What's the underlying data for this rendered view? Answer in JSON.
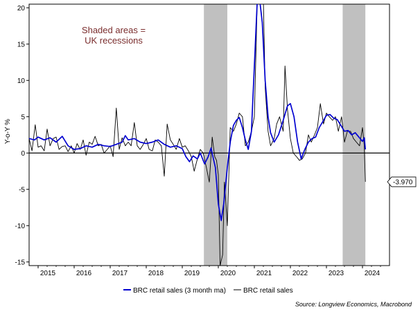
{
  "chart_data": {
    "type": "line",
    "ylabel": "Y-o-Y %",
    "ylim": [
      -15.5,
      20.5
    ],
    "yticks": [
      -15,
      -10,
      -5,
      0,
      5,
      10,
      15,
      20
    ],
    "xlim": [
      2014.75,
      2024.75
    ],
    "xticks": [
      {
        "label": "2015",
        "x": 2015.0
      },
      {
        "label": "2016",
        "x": 2016.0
      },
      {
        "label": "2017",
        "x": 2017.0
      },
      {
        "label": "2018",
        "x": 2018.0
      },
      {
        "label": "2019",
        "x": 2019.0
      },
      {
        "label": "2020",
        "x": 2020.0
      },
      {
        "label": "2021",
        "x": 2021.0
      },
      {
        "label": "2022",
        "x": 2022.0
      },
      {
        "label": "2023",
        "x": 2023.0
      },
      {
        "label": "2024",
        "x": 2024.0
      }
    ],
    "recessions": [
      {
        "start": 2019.6,
        "end": 2020.25
      },
      {
        "start": 2023.45,
        "end": 2024.08
      }
    ],
    "annotation": [
      "Shaded areas =",
      "UK recessions"
    ],
    "callout": {
      "label": "-3.970",
      "x": 2024.08,
      "y": -3.97
    },
    "series": [
      {
        "name": "BRC retail sales (3 month ma)",
        "color": "#0000d0",
        "points": [
          [
            2014.75,
            2.0
          ],
          [
            2014.9,
            1.8
          ],
          [
            2015.0,
            2.2
          ],
          [
            2015.17,
            1.8
          ],
          [
            2015.33,
            2.1
          ],
          [
            2015.5,
            1.5
          ],
          [
            2015.67,
            2.3
          ],
          [
            2015.83,
            1.0
          ],
          [
            2016.0,
            0.5
          ],
          [
            2016.17,
            0.6
          ],
          [
            2016.33,
            1.0
          ],
          [
            2016.5,
            0.8
          ],
          [
            2016.67,
            1.2
          ],
          [
            2016.83,
            1.0
          ],
          [
            2017.0,
            0.9
          ],
          [
            2017.17,
            1.2
          ],
          [
            2017.33,
            1.5
          ],
          [
            2017.42,
            2.4
          ],
          [
            2017.5,
            1.8
          ],
          [
            2017.67,
            2.0
          ],
          [
            2017.83,
            1.5
          ],
          [
            2018.0,
            1.3
          ],
          [
            2018.17,
            1.5
          ],
          [
            2018.33,
            1.8
          ],
          [
            2018.5,
            1.2
          ],
          [
            2018.67,
            0.8
          ],
          [
            2018.83,
            1.0
          ],
          [
            2019.0,
            0.6
          ],
          [
            2019.1,
            -0.5
          ],
          [
            2019.2,
            -1.2
          ],
          [
            2019.3,
            -0.4
          ],
          [
            2019.42,
            -0.8
          ],
          [
            2019.5,
            0.0
          ],
          [
            2019.62,
            -1.5
          ],
          [
            2019.72,
            -0.5
          ],
          [
            2019.8,
            0.7
          ],
          [
            2019.85,
            -0.5
          ],
          [
            2019.92,
            -2.0
          ],
          [
            2020.0,
            -7.0
          ],
          [
            2020.08,
            -9.3
          ],
          [
            2020.15,
            -7.0
          ],
          [
            2020.25,
            -2.0
          ],
          [
            2020.33,
            1.5
          ],
          [
            2020.42,
            3.8
          ],
          [
            2020.5,
            4.5
          ],
          [
            2020.58,
            4.9
          ],
          [
            2020.67,
            3.5
          ],
          [
            2020.75,
            1.8
          ],
          [
            2020.83,
            0.5
          ],
          [
            2020.92,
            3.0
          ],
          [
            2021.0,
            12.0
          ],
          [
            2021.08,
            21.0
          ],
          [
            2021.15,
            21.0
          ],
          [
            2021.22,
            18.0
          ],
          [
            2021.3,
            10.0
          ],
          [
            2021.38,
            5.0
          ],
          [
            2021.45,
            2.8
          ],
          [
            2021.55,
            1.5
          ],
          [
            2021.67,
            2.5
          ],
          [
            2021.8,
            4.5
          ],
          [
            2021.92,
            6.5
          ],
          [
            2022.0,
            6.8
          ],
          [
            2022.1,
            5.0
          ],
          [
            2022.2,
            1.5
          ],
          [
            2022.3,
            -0.8
          ],
          [
            2022.4,
            0.5
          ],
          [
            2022.5,
            1.5
          ],
          [
            2022.6,
            2.0
          ],
          [
            2022.7,
            2.2
          ],
          [
            2022.8,
            3.5
          ],
          [
            2022.92,
            4.5
          ],
          [
            2023.0,
            5.2
          ],
          [
            2023.1,
            5.3
          ],
          [
            2023.2,
            4.8
          ],
          [
            2023.3,
            4.6
          ],
          [
            2023.4,
            3.8
          ],
          [
            2023.5,
            3.0
          ],
          [
            2023.6,
            3.1
          ],
          [
            2023.7,
            2.5
          ],
          [
            2023.8,
            2.8
          ],
          [
            2023.9,
            2.2
          ],
          [
            2024.0,
            1.6
          ],
          [
            2024.05,
            2.1
          ],
          [
            2024.08,
            0.5
          ]
        ]
      },
      {
        "name": "BRC retail sales",
        "color": "#000000",
        "points": [
          [
            2014.75,
            2.0
          ],
          [
            2014.83,
            0.3
          ],
          [
            2014.92,
            3.9
          ],
          [
            2015.0,
            0.8
          ],
          [
            2015.08,
            1.0
          ],
          [
            2015.17,
            0.3
          ],
          [
            2015.25,
            3.3
          ],
          [
            2015.33,
            1.0
          ],
          [
            2015.42,
            2.0
          ],
          [
            2015.5,
            2.2
          ],
          [
            2015.58,
            0.5
          ],
          [
            2015.67,
            0.9
          ],
          [
            2015.75,
            1.0
          ],
          [
            2015.83,
            0.2
          ],
          [
            2015.92,
            1.0
          ],
          [
            2016.0,
            0.0
          ],
          [
            2016.08,
            1.3
          ],
          [
            2016.17,
            0.5
          ],
          [
            2016.25,
            1.8
          ],
          [
            2016.33,
            -0.3
          ],
          [
            2016.42,
            1.5
          ],
          [
            2016.5,
            1.2
          ],
          [
            2016.58,
            2.3
          ],
          [
            2016.67,
            1.0
          ],
          [
            2016.75,
            1.2
          ],
          [
            2016.83,
            0.0
          ],
          [
            2016.92,
            0.5
          ],
          [
            2017.0,
            1.0
          ],
          [
            2017.08,
            -0.5
          ],
          [
            2017.17,
            6.2
          ],
          [
            2017.25,
            0.5
          ],
          [
            2017.33,
            2.1
          ],
          [
            2017.42,
            1.0
          ],
          [
            2017.5,
            1.5
          ],
          [
            2017.58,
            1.0
          ],
          [
            2017.67,
            4.2
          ],
          [
            2017.75,
            1.0
          ],
          [
            2017.83,
            0.5
          ],
          [
            2017.92,
            1.2
          ],
          [
            2018.0,
            2.0
          ],
          [
            2018.08,
            0.5
          ],
          [
            2018.17,
            0.3
          ],
          [
            2018.25,
            1.8
          ],
          [
            2018.33,
            1.5
          ],
          [
            2018.42,
            1.0
          ],
          [
            2018.5,
            -3.2
          ],
          [
            2018.58,
            4.0
          ],
          [
            2018.67,
            1.8
          ],
          [
            2018.75,
            1.2
          ],
          [
            2018.83,
            0.5
          ],
          [
            2018.92,
            2.0
          ],
          [
            2019.0,
            0.8
          ],
          [
            2019.08,
            1.0
          ],
          [
            2019.17,
            0.3
          ],
          [
            2019.25,
            -0.5
          ],
          [
            2019.33,
            -2.5
          ],
          [
            2019.42,
            -0.8
          ],
          [
            2019.5,
            0.5
          ],
          [
            2019.58,
            0.0
          ],
          [
            2019.67,
            -2.0
          ],
          [
            2019.75,
            -4.0
          ],
          [
            2019.83,
            2.2
          ],
          [
            2019.9,
            -0.5
          ],
          [
            2019.95,
            -1.0
          ],
          [
            2020.0,
            -3.0
          ],
          [
            2020.05,
            -15.5
          ],
          [
            2020.12,
            -14.0
          ],
          [
            2020.17,
            -4.0
          ],
          [
            2020.25,
            -10.0
          ],
          [
            2020.33,
            3.5
          ],
          [
            2020.42,
            3.0
          ],
          [
            2020.5,
            4.0
          ],
          [
            2020.58,
            5.5
          ],
          [
            2020.67,
            5.0
          ],
          [
            2020.75,
            1.0
          ],
          [
            2020.83,
            1.5
          ],
          [
            2020.92,
            3.0
          ],
          [
            2021.0,
            5.0
          ],
          [
            2021.08,
            21.0
          ],
          [
            2021.15,
            21.0
          ],
          [
            2021.25,
            21.0
          ],
          [
            2021.3,
            9.0
          ],
          [
            2021.38,
            3.0
          ],
          [
            2021.45,
            1.0
          ],
          [
            2021.55,
            2.0
          ],
          [
            2021.62,
            4.0
          ],
          [
            2021.7,
            5.0
          ],
          [
            2021.8,
            3.0
          ],
          [
            2021.85,
            12.0
          ],
          [
            2021.92,
            6.0
          ],
          [
            2022.0,
            2.0
          ],
          [
            2022.08,
            0.0
          ],
          [
            2022.17,
            -0.5
          ],
          [
            2022.25,
            -1.0
          ],
          [
            2022.33,
            -0.8
          ],
          [
            2022.42,
            0.0
          ],
          [
            2022.5,
            2.5
          ],
          [
            2022.58,
            1.5
          ],
          [
            2022.67,
            2.5
          ],
          [
            2022.75,
            3.5
          ],
          [
            2022.83,
            6.8
          ],
          [
            2022.92,
            4.0
          ],
          [
            2023.0,
            5.5
          ],
          [
            2023.08,
            5.0
          ],
          [
            2023.17,
            4.5
          ],
          [
            2023.25,
            5.0
          ],
          [
            2023.33,
            3.0
          ],
          [
            2023.42,
            5.0
          ],
          [
            2023.5,
            1.5
          ],
          [
            2023.58,
            3.0
          ],
          [
            2023.67,
            3.0
          ],
          [
            2023.75,
            2.0
          ],
          [
            2023.83,
            1.5
          ],
          [
            2023.92,
            1.0
          ],
          [
            2024.0,
            3.5
          ],
          [
            2024.05,
            1.0
          ],
          [
            2024.08,
            -3.97
          ]
        ]
      }
    ],
    "source": "Source: Longview Economics, Macrobond"
  }
}
